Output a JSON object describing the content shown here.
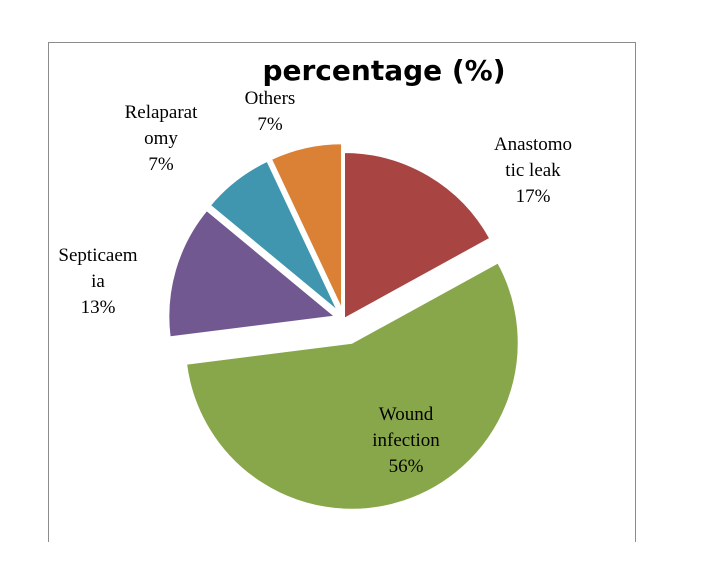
{
  "chart_data": {
    "type": "pie",
    "title": "percentage (%)",
    "slices": [
      {
        "name": "Anastomotic leak",
        "value": 17,
        "label_lines": [
          "Anastomo",
          "tic leak",
          "17%"
        ],
        "color": "#a84543"
      },
      {
        "name": "Wound infection",
        "value": 56,
        "label_lines": [
          "Wound",
          "infection",
          "56%"
        ],
        "color": "#88a64a"
      },
      {
        "name": "Septicaemia",
        "value": 13,
        "label_lines": [
          "Septicaem",
          "ia",
          "13%"
        ],
        "color": "#715890"
      },
      {
        "name": "Relaparatomy",
        "value": 7,
        "label_lines": [
          "Relaparat",
          "omy",
          "7%"
        ],
        "color": "#3f96ae"
      },
      {
        "name": "Others",
        "value": 7,
        "label_lines": [
          "Others",
          "7%"
        ],
        "color": "#da8136"
      }
    ],
    "legend": "none",
    "start_angle": "12 o'clock",
    "direction": "clockwise",
    "exploded": true
  }
}
